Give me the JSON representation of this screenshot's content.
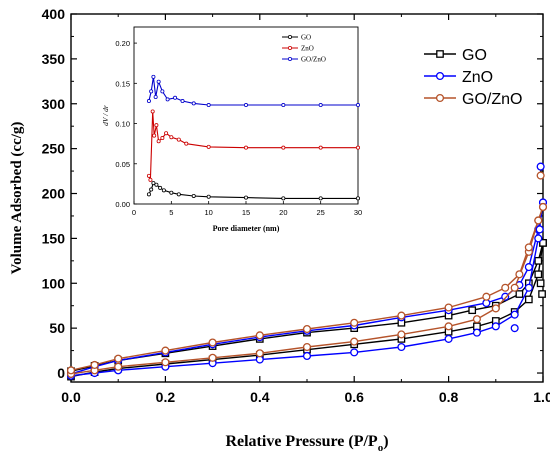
{
  "chart_data": [
    {
      "type": "line",
      "xlabel": "Relative Pressure (P/Po)",
      "xlabel_main": "Relative Pressure (P/P",
      "xlabel_sub": "o",
      "xlabel_close": ")",
      "ylabel": "Volume Adsorbed (cc/g)",
      "xlim": [
        0.0,
        1.0
      ],
      "ylim": [
        -10,
        400
      ],
      "xticks": [
        "0.0",
        "0.2",
        "0.4",
        "0.6",
        "0.8",
        "1.0"
      ],
      "yticks": [
        "0",
        "50",
        "100",
        "150",
        "200",
        "250",
        "300",
        "350",
        "400"
      ],
      "grid": false,
      "legend_position": "top-right",
      "series": [
        {
          "name": "GO",
          "color": "#000000",
          "marker": "square",
          "adsorption": [
            [
              0.0,
              -4
            ],
            [
              0.05,
              1
            ],
            [
              0.1,
              5
            ],
            [
              0.2,
              10
            ],
            [
              0.3,
              15
            ],
            [
              0.4,
              20
            ],
            [
              0.5,
              26
            ],
            [
              0.6,
              32
            ],
            [
              0.7,
              38
            ],
            [
              0.8,
              46
            ],
            [
              0.86,
              52
            ],
            [
              0.9,
              58
            ],
            [
              0.94,
              68
            ],
            [
              0.97,
              82
            ],
            [
              0.99,
              110
            ],
            [
              1.0,
              145
            ]
          ],
          "desorption": [
            [
              1.0,
              145
            ],
            [
              0.99,
              125
            ],
            [
              0.97,
              100
            ],
            [
              0.95,
              88
            ],
            [
              0.9,
              75
            ],
            [
              0.85,
              70
            ],
            [
              0.8,
              64
            ],
            [
              0.7,
              56
            ],
            [
              0.6,
              50
            ],
            [
              0.5,
              45
            ],
            [
              0.4,
              38
            ],
            [
              0.3,
              30
            ],
            [
              0.2,
              22
            ],
            [
              0.1,
              14
            ],
            [
              0.05,
              8
            ],
            [
              0.0,
              2
            ]
          ]
        },
        {
          "name": "ZnO",
          "color": "#0000ff",
          "marker": "circle",
          "adsorption": [
            [
              0.0,
              -3
            ],
            [
              0.05,
              0
            ],
            [
              0.1,
              3
            ],
            [
              0.2,
              7
            ],
            [
              0.3,
              11
            ],
            [
              0.4,
              15
            ],
            [
              0.5,
              19
            ],
            [
              0.6,
              23
            ],
            [
              0.7,
              29
            ],
            [
              0.8,
              38
            ],
            [
              0.86,
              45
            ],
            [
              0.9,
              52
            ],
            [
              0.94,
              65
            ],
            [
              0.97,
              95
            ],
            [
              0.99,
              150
            ],
            [
              1.0,
              190
            ]
          ],
          "desorption": [
            [
              1.0,
              190
            ],
            [
              0.99,
              160
            ],
            [
              0.97,
              118
            ],
            [
              0.95,
              98
            ],
            [
              0.92,
              85
            ],
            [
              0.88,
              78
            ],
            [
              0.8,
              70
            ],
            [
              0.7,
              62
            ],
            [
              0.6,
              53
            ],
            [
              0.5,
              47
            ],
            [
              0.4,
              40
            ],
            [
              0.3,
              32
            ],
            [
              0.2,
              23
            ],
            [
              0.1,
              14
            ],
            [
              0.05,
              7
            ],
            [
              0.0,
              -1
            ]
          ]
        },
        {
          "name": "GO/ZnO",
          "color": "#b5532a",
          "marker": "circle",
          "adsorption": [
            [
              0.0,
              -1
            ],
            [
              0.05,
              3
            ],
            [
              0.1,
              7
            ],
            [
              0.2,
              12
            ],
            [
              0.3,
              17
            ],
            [
              0.4,
              22
            ],
            [
              0.5,
              29
            ],
            [
              0.6,
              35
            ],
            [
              0.7,
              43
            ],
            [
              0.8,
              52
            ],
            [
              0.86,
              60
            ],
            [
              0.9,
              72
            ],
            [
              0.94,
              95
            ],
            [
              0.97,
              135
            ],
            [
              0.99,
              170
            ],
            [
              1.0,
              185
            ]
          ],
          "desorption": [
            [
              1.0,
              185
            ],
            [
              0.99,
              170
            ],
            [
              0.97,
              140
            ],
            [
              0.95,
              110
            ],
            [
              0.92,
              95
            ],
            [
              0.88,
              85
            ],
            [
              0.8,
              73
            ],
            [
              0.7,
              64
            ],
            [
              0.6,
              56
            ],
            [
              0.5,
              49
            ],
            [
              0.4,
              42
            ],
            [
              0.3,
              34
            ],
            [
              0.2,
              25
            ],
            [
              0.1,
              16
            ],
            [
              0.05,
              9
            ],
            [
              0.0,
              3
            ]
          ]
        }
      ],
      "outliers": [
        {
          "series": "ZnO",
          "x": 0.995,
          "y": 230
        },
        {
          "series": "GO/ZnO",
          "x": 0.995,
          "y": 220
        },
        {
          "series": "ZnO",
          "x": 0.993,
          "y": 160
        },
        {
          "series": "GO",
          "x": 0.995,
          "y": 100
        },
        {
          "series": "GO",
          "x": 0.998,
          "y": 88
        },
        {
          "series": "ZnO",
          "x": 0.94,
          "y": 50
        }
      ]
    },
    {
      "type": "line",
      "xlabel": "Pore diameter (nm)",
      "ylabel": "dV / dr",
      "xlim": [
        0,
        30
      ],
      "ylim": [
        0,
        0.22
      ],
      "xticks": [
        "0",
        "5",
        "10",
        "15",
        "20",
        "25",
        "30"
      ],
      "yticks": [
        "0.00",
        "0.05",
        "0.10",
        "0.15",
        "0.20"
      ],
      "legend_position": "top-right",
      "series": [
        {
          "name": "GO",
          "color": "#000000",
          "values": [
            [
              2.0,
              0.012
            ],
            [
              2.3,
              0.018
            ],
            [
              2.6,
              0.026
            ],
            [
              3.0,
              0.024
            ],
            [
              3.5,
              0.02
            ],
            [
              4.0,
              0.017
            ],
            [
              5,
              0.014
            ],
            [
              6,
              0.012
            ],
            [
              8,
              0.01
            ],
            [
              10,
              0.009
            ],
            [
              15,
              0.008
            ],
            [
              20,
              0.007
            ],
            [
              25,
              0.007
            ],
            [
              30,
              0.007
            ]
          ]
        },
        {
          "name": "ZnO",
          "color": "#cc0000",
          "values": [
            [
              2.0,
              0.035
            ],
            [
              2.2,
              0.03
            ],
            [
              2.5,
              0.115
            ],
            [
              2.7,
              0.085
            ],
            [
              3.0,
              0.098
            ],
            [
              3.3,
              0.078
            ],
            [
              3.8,
              0.082
            ],
            [
              4.3,
              0.088
            ],
            [
              5,
              0.083
            ],
            [
              6,
              0.08
            ],
            [
              7,
              0.075
            ],
            [
              10,
              0.071
            ],
            [
              15,
              0.07
            ],
            [
              20,
              0.07
            ],
            [
              25,
              0.07
            ],
            [
              30,
              0.07
            ]
          ]
        },
        {
          "name": "GO/ZnO",
          "color": "#0000cc",
          "values": [
            [
              2.0,
              0.128
            ],
            [
              2.3,
              0.14
            ],
            [
              2.6,
              0.158
            ],
            [
              2.9,
              0.133
            ],
            [
              3.3,
              0.152
            ],
            [
              3.8,
              0.14
            ],
            [
              4.5,
              0.13
            ],
            [
              5.5,
              0.132
            ],
            [
              6.5,
              0.128
            ],
            [
              8,
              0.125
            ],
            [
              10,
              0.123
            ],
            [
              15,
              0.123
            ],
            [
              20,
              0.123
            ],
            [
              25,
              0.123
            ],
            [
              30,
              0.123
            ]
          ]
        }
      ]
    }
  ]
}
